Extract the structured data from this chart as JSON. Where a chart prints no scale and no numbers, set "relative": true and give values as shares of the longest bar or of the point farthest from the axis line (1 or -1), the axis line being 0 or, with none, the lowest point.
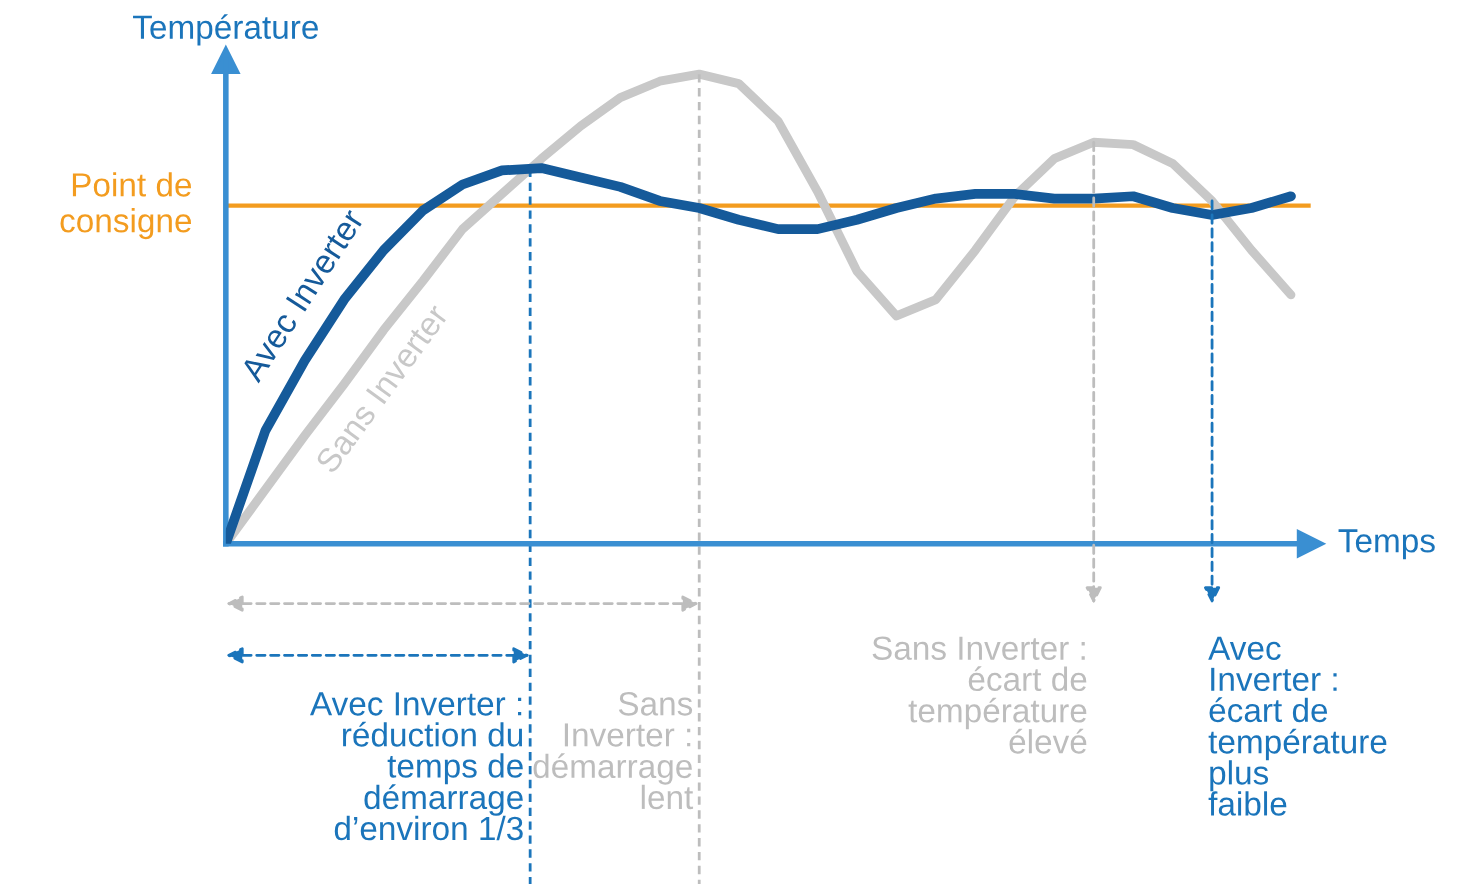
{
  "chart_data": {
    "type": "line",
    "relative": true,
    "xlabel": "Temps",
    "ylabel": "Température",
    "categories": [
      null,
      null,
      null,
      null,
      null,
      null,
      null,
      null,
      null,
      null,
      null,
      null,
      null,
      null,
      null,
      null,
      null,
      null,
      null,
      null,
      null,
      null,
      null,
      null,
      null,
      null,
      null,
      null
    ],
    "series": [
      {
        "name": "Avec Inverter",
        "color": "#155a9a",
        "values": [
          0,
          0.24,
          0.39,
          0.52,
          0.625,
          0.71,
          0.765,
          0.795,
          0.8,
          0.78,
          0.76,
          0.73,
          0.715,
          0.69,
          0.67,
          0.67,
          0.69,
          0.715,
          0.735,
          0.745,
          0.745,
          0.735,
          0.735,
          0.74,
          0.715,
          0.7,
          0.715,
          0.74
        ]
      },
      {
        "name": "Sans Inverter",
        "color": "#c8c8c8",
        "values": [
          0,
          0.115,
          0.23,
          0.34,
          0.455,
          0.56,
          0.67,
          0.745,
          0.82,
          0.89,
          0.95,
          0.985,
          1,
          0.98,
          0.9,
          0.75,
          0.58,
          0.485,
          0.52,
          0.625,
          0.74,
          0.82,
          0.855,
          0.85,
          0.81,
          0.73,
          0.625,
          0.53
        ]
      }
    ],
    "ref_lines": [
      {
        "axis": "y",
        "value": 0.72,
        "label": "Point de\nconsigne",
        "color": "#f39c1f",
        "line_style": "solid"
      }
    ],
    "annotations": [
      "Avec Inverter :\nréduction du\ntemps de\ndémarrage\nd’environ 1/3",
      "Sans\nInverter :\ndémarrage\nlent",
      "Sans Inverter :\nécart de\ntempérature\nélevé",
      "Avec\nInverter :\nécart de\ntempérature\nplus\nfaible"
    ],
    "legend": false,
    "marker": "none",
    "line_style": "solid"
  }
}
